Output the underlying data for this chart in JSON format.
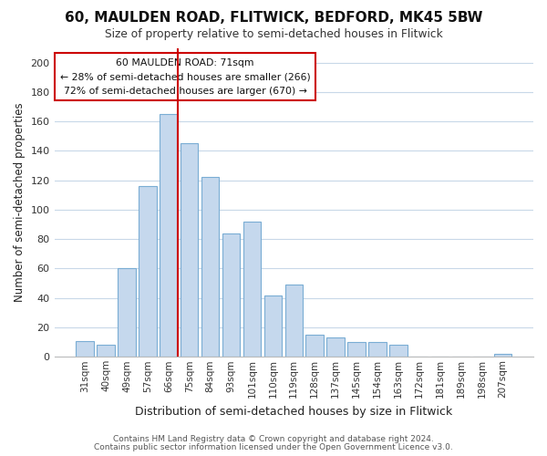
{
  "title": "60, MAULDEN ROAD, FLITWICK, BEDFORD, MK45 5BW",
  "subtitle": "Size of property relative to semi-detached houses in Flitwick",
  "xlabel": "Distribution of semi-detached houses by size in Flitwick",
  "ylabel": "Number of semi-detached properties",
  "footer1": "Contains HM Land Registry data © Crown copyright and database right 2024.",
  "footer2": "Contains public sector information licensed under the Open Government Licence v3.0.",
  "bar_labels": [
    "31sqm",
    "40sqm",
    "49sqm",
    "57sqm",
    "66sqm",
    "75sqm",
    "84sqm",
    "93sqm",
    "101sqm",
    "110sqm",
    "119sqm",
    "128sqm",
    "137sqm",
    "145sqm",
    "154sqm",
    "163sqm",
    "172sqm",
    "181sqm",
    "189sqm",
    "198sqm",
    "207sqm"
  ],
  "bar_values": [
    11,
    8,
    60,
    116,
    165,
    145,
    122,
    84,
    92,
    42,
    49,
    15,
    13,
    10,
    10,
    8,
    0,
    0,
    0,
    0,
    2
  ],
  "bar_color": "#c5d8ed",
  "bar_edge_color": "#7aadd4",
  "highlight_index": 4,
  "highlight_line_color": "#cc0000",
  "annotation_box_title": "60 MAULDEN ROAD: 71sqm",
  "annotation_line1": "← 28% of semi-detached houses are smaller (266)",
  "annotation_line2": "72% of semi-detached houses are larger (670) →",
  "ylim": [
    0,
    210
  ],
  "yticks": [
    0,
    20,
    40,
    60,
    80,
    100,
    120,
    140,
    160,
    180,
    200
  ],
  "background_color": "#ffffff",
  "grid_color": "#c8d8e8"
}
